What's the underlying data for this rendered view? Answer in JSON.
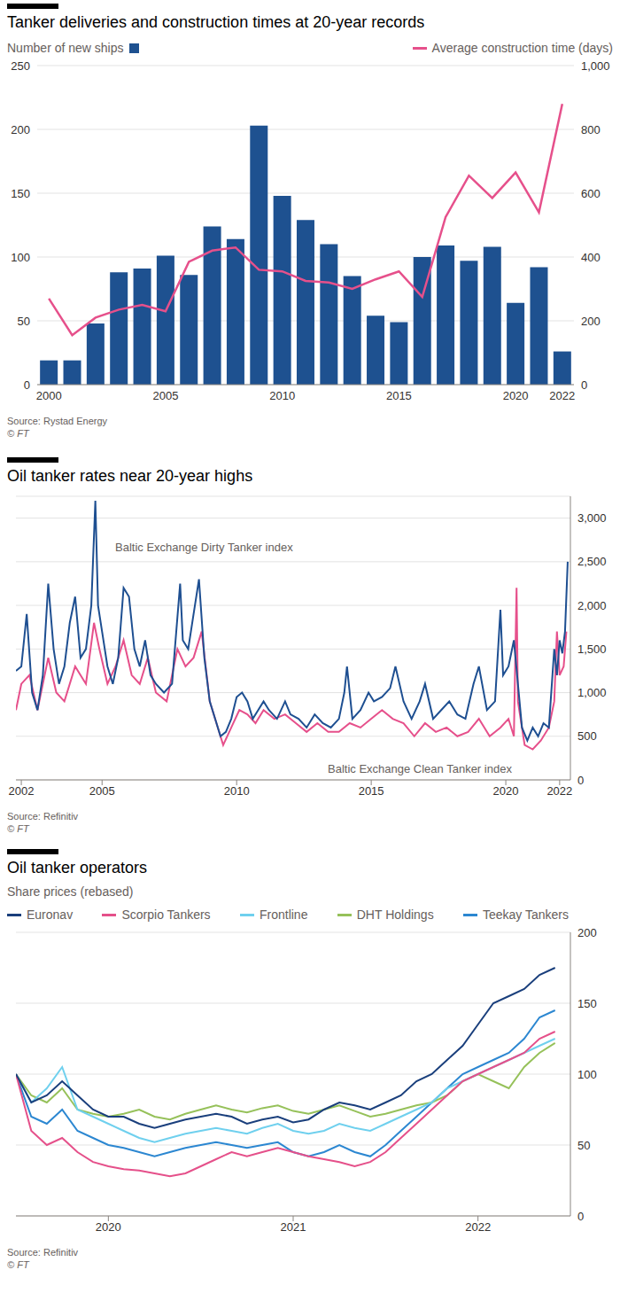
{
  "chart_data": [
    {
      "type": "bar",
      "title": "Tanker deliveries and construction times at 20-year records",
      "categories": [
        "2000",
        null,
        null,
        null,
        null,
        "2005",
        null,
        null,
        null,
        null,
        "2010",
        null,
        null,
        null,
        null,
        "2015",
        null,
        null,
        null,
        null,
        "2020",
        null,
        "2022"
      ],
      "series": [
        {
          "name": "Number of new ships",
          "type": "bar",
          "color": "#1e5190",
          "values": [
            19,
            19,
            48,
            88,
            91,
            101,
            86,
            124,
            114,
            203,
            148,
            129,
            110,
            85,
            54,
            49,
            100,
            109,
            97,
            108,
            64,
            92,
            26
          ]
        },
        {
          "name": "Average construction time (days)",
          "type": "line",
          "color": "#e6508b",
          "axis": "y2",
          "values": [
            270,
            155,
            210,
            235,
            250,
            230,
            385,
            420,
            430,
            360,
            355,
            325,
            320,
            300,
            330,
            355,
            275,
            525,
            655,
            585,
            665,
            540,
            880
          ]
        }
      ],
      "ylim": [
        0,
        250
      ],
      "yticks": [
        0,
        50,
        100,
        150,
        200,
        250
      ],
      "y2lim": [
        0,
        1000
      ],
      "y2ticks": [
        0,
        200,
        400,
        600,
        800,
        {
          "value": 1000,
          "label": "1,000"
        }
      ],
      "grid": true,
      "legend": "top",
      "source": "Source: Rystad Energy",
      "credit": "© FT"
    },
    {
      "type": "line",
      "title": "Oil tanker rates near 20-year highs",
      "series": [
        {
          "name": "Baltic Exchange Dirty Tanker index",
          "color": "#1e4f91",
          "x": [
            2001.8,
            2002.0,
            2002.2,
            2002.4,
            2002.6,
            2002.8,
            2003.0,
            2003.2,
            2003.4,
            2003.6,
            2003.8,
            2004.0,
            2004.2,
            2004.4,
            2004.6,
            2004.75,
            2004.85,
            2005.0,
            2005.2,
            2005.4,
            2005.6,
            2005.8,
            2006.0,
            2006.2,
            2006.4,
            2006.6,
            2006.8,
            2007.0,
            2007.3,
            2007.6,
            2007.9,
            2008.0,
            2008.2,
            2008.4,
            2008.6,
            2008.8,
            2009.0,
            2009.2,
            2009.4,
            2009.6,
            2009.8,
            2010.0,
            2010.2,
            2010.4,
            2010.6,
            2010.8,
            2011.0,
            2011.2,
            2011.5,
            2011.8,
            2012.0,
            2012.3,
            2012.6,
            2012.9,
            2013.2,
            2013.5,
            2013.8,
            2014.0,
            2014.1,
            2014.3,
            2014.6,
            2014.9,
            2015.1,
            2015.4,
            2015.7,
            2015.9,
            2016.2,
            2016.5,
            2016.8,
            2017.0,
            2017.3,
            2017.6,
            2017.9,
            2018.2,
            2018.5,
            2018.8,
            2019.0,
            2019.3,
            2019.6,
            2019.8,
            2019.9,
            2020.1,
            2020.3,
            2020.45,
            2020.6,
            2020.8,
            2021.0,
            2021.2,
            2021.4,
            2021.6,
            2021.8,
            2021.9,
            2022.0,
            2022.1,
            2022.2,
            2022.3
          ],
          "values": [
            1250,
            1300,
            1900,
            1000,
            800,
            1200,
            2250,
            1500,
            1100,
            1300,
            1800,
            2100,
            1400,
            1500,
            2000,
            3200,
            2000,
            1700,
            1300,
            1100,
            1400,
            2200,
            2100,
            1500,
            1300,
            1600,
            1200,
            1100,
            1000,
            1100,
            2250,
            1600,
            1500,
            1900,
            2300,
            1400,
            900,
            700,
            500,
            550,
            700,
            950,
            1000,
            900,
            700,
            800,
            900,
            800,
            700,
            900,
            750,
            700,
            600,
            750,
            650,
            600,
            700,
            1000,
            1300,
            700,
            800,
            1000,
            900,
            950,
            1050,
            1300,
            900,
            700,
            900,
            1100,
            700,
            800,
            900,
            750,
            700,
            1100,
            1300,
            800,
            900,
            1950,
            1200,
            1300,
            1600,
            1100,
            600,
            450,
            600,
            500,
            650,
            600,
            1500,
            1200,
            1600,
            1450,
            1700,
            2500
          ]
        },
        {
          "name": "Baltic Exchange Clean Tanker index",
          "color": "#e6508b",
          "x": [
            2001.8,
            2002.0,
            2002.3,
            2002.6,
            2003.0,
            2003.3,
            2003.6,
            2004.0,
            2004.4,
            2004.7,
            2004.9,
            2005.2,
            2005.5,
            2005.8,
            2006.1,
            2006.4,
            2006.7,
            2007.0,
            2007.4,
            2007.8,
            2008.1,
            2008.4,
            2008.7,
            2009.0,
            2009.3,
            2009.5,
            2009.8,
            2010.1,
            2010.4,
            2010.7,
            2011.0,
            2011.4,
            2011.8,
            2012.2,
            2012.6,
            2013.0,
            2013.4,
            2013.8,
            2014.2,
            2014.6,
            2015.0,
            2015.4,
            2015.8,
            2016.2,
            2016.6,
            2017.0,
            2017.4,
            2017.8,
            2018.2,
            2018.6,
            2019.0,
            2019.4,
            2019.8,
            2020.1,
            2020.3,
            2020.4,
            2020.45,
            2020.7,
            2021.0,
            2021.3,
            2021.6,
            2021.8,
            2021.9,
            2022.0,
            2022.15,
            2022.25
          ],
          "values": [
            800,
            1100,
            1200,
            800,
            1400,
            1000,
            900,
            1300,
            1100,
            1800,
            1500,
            1100,
            1300,
            1600,
            1200,
            1100,
            1400,
            1000,
            900,
            1500,
            1300,
            1400,
            1700,
            900,
            600,
            400,
            600,
            800,
            750,
            650,
            800,
            700,
            750,
            650,
            550,
            650,
            550,
            550,
            650,
            600,
            700,
            800,
            700,
            650,
            500,
            650,
            550,
            600,
            500,
            550,
            700,
            500,
            600,
            700,
            500,
            2200,
            900,
            400,
            350,
            450,
            600,
            900,
            1700,
            1200,
            1300,
            1700
          ]
        }
      ],
      "xlim": [
        2001.8,
        2022.4
      ],
      "xticks": [
        2002,
        2005,
        2010,
        2015,
        2020,
        2022
      ],
      "ylim": [
        0,
        3250
      ],
      "yticks": [
        0,
        500,
        {
          "value": 1000,
          "label": "1,000"
        },
        {
          "value": 1500,
          "label": "1,500"
        },
        {
          "value": 2000,
          "label": "2,000"
        },
        {
          "value": 2500,
          "label": "2,500"
        },
        {
          "value": 3000,
          "label": "3,000"
        }
      ],
      "grid": true,
      "source": "Source: Refinitiv",
      "credit": "© FT"
    },
    {
      "type": "line",
      "title": "Oil tanker operators",
      "subtitle": "Share prices (rebased)",
      "x": [
        2020.0,
        2020.083,
        2020.167,
        2020.25,
        2020.333,
        2020.417,
        2020.5,
        2020.583,
        2020.667,
        2020.75,
        2020.833,
        2020.917,
        2021.0,
        2021.083,
        2021.167,
        2021.25,
        2021.333,
        2021.417,
        2021.5,
        2021.583,
        2021.667,
        2021.75,
        2021.833,
        2021.917,
        2022.0,
        2022.083,
        2022.167,
        2022.25,
        2022.333,
        2022.417,
        2022.5,
        2022.583,
        2022.667,
        2022.75,
        2022.833,
        2022.917
      ],
      "series": [
        {
          "name": "Euronav",
          "color": "#1a3f7c",
          "values": [
            100,
            80,
            85,
            95,
            85,
            75,
            70,
            70,
            65,
            62,
            65,
            68,
            70,
            72,
            70,
            65,
            68,
            70,
            66,
            68,
            75,
            80,
            78,
            75,
            80,
            85,
            95,
            100,
            110,
            120,
            135,
            150,
            155,
            160,
            170,
            175
          ]
        },
        {
          "name": "Scorpio Tankers",
          "color": "#e5508a",
          "values": [
            100,
            60,
            50,
            55,
            45,
            38,
            35,
            33,
            32,
            30,
            28,
            30,
            35,
            40,
            45,
            42,
            45,
            48,
            45,
            42,
            40,
            38,
            35,
            38,
            45,
            55,
            65,
            75,
            85,
            95,
            100,
            105,
            110,
            115,
            125,
            130
          ]
        },
        {
          "name": "Frontline",
          "color": "#6fd0ee",
          "values": [
            100,
            80,
            90,
            105,
            75,
            70,
            65,
            60,
            55,
            52,
            55,
            58,
            60,
            62,
            60,
            58,
            62,
            65,
            60,
            58,
            60,
            65,
            62,
            60,
            65,
            70,
            75,
            80,
            90,
            95,
            100,
            105,
            110,
            115,
            120,
            125
          ]
        },
        {
          "name": "DHT Holdings",
          "color": "#96c15a",
          "values": [
            100,
            85,
            80,
            90,
            75,
            72,
            70,
            72,
            75,
            70,
            68,
            72,
            75,
            78,
            75,
            73,
            76,
            78,
            74,
            72,
            75,
            78,
            74,
            70,
            72,
            75,
            78,
            80,
            85,
            95,
            100,
            95,
            90,
            105,
            115,
            122
          ]
        },
        {
          "name": "Teekay Tankers",
          "color": "#2c87d1",
          "values": [
            100,
            70,
            65,
            75,
            60,
            55,
            50,
            48,
            45,
            42,
            45,
            48,
            50,
            52,
            50,
            48,
            50,
            52,
            45,
            42,
            45,
            50,
            45,
            42,
            50,
            60,
            70,
            80,
            90,
            100,
            105,
            110,
            115,
            125,
            140,
            145
          ]
        }
      ],
      "xlim": [
        2020.0,
        2023.0
      ],
      "xticks": [
        {
          "value": 2020.5,
          "label": "2020"
        },
        {
          "value": 2021.5,
          "label": "2021"
        },
        {
          "value": 2022.5,
          "label": "2022"
        }
      ],
      "ylim": [
        0,
        200
      ],
      "yticks": [
        0,
        50,
        100,
        150,
        200
      ],
      "grid": true,
      "legend": "top",
      "source": "Source: Refinitiv",
      "credit": "© FT"
    }
  ]
}
